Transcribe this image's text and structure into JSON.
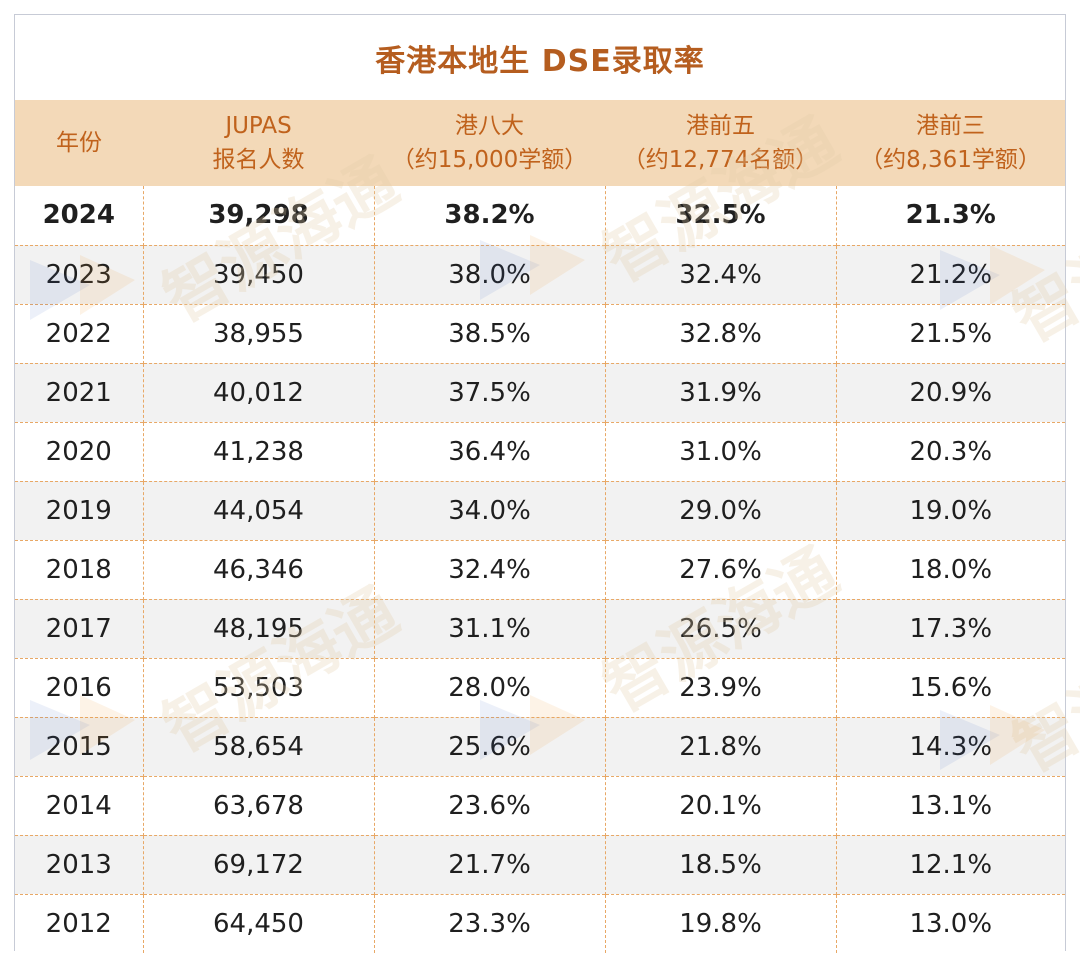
{
  "title": "香港本地生 DSE录取率",
  "headers": {
    "year": "年份",
    "jupas_1": "JUPAS",
    "jupas_2": "报名人数",
    "top8_1": "港八大",
    "top8_2": "（约15,000学额）",
    "top5_1": "港前五",
    "top5_2": "（约12,774名额）",
    "top3_1": "港前三",
    "top3_2": "（约8,361学额）"
  },
  "rows": [
    {
      "year": "2024",
      "jupas": "39,298",
      "top8": "38.2%",
      "top5": "32.5%",
      "top3": "21.3%"
    },
    {
      "year": "2023",
      "jupas": "39,450",
      "top8": "38.0%",
      "top5": "32.4%",
      "top3": "21.2%"
    },
    {
      "year": "2022",
      "jupas": "38,955",
      "top8": "38.5%",
      "top5": "32.8%",
      "top3": "21.5%"
    },
    {
      "year": "2021",
      "jupas": "40,012",
      "top8": "37.5%",
      "top5": "31.9%",
      "top3": "20.9%"
    },
    {
      "year": "2020",
      "jupas": "41,238",
      "top8": "36.4%",
      "top5": "31.0%",
      "top3": "20.3%"
    },
    {
      "year": "2019",
      "jupas": "44,054",
      "top8": "34.0%",
      "top5": "29.0%",
      "top3": "19.0%"
    },
    {
      "year": "2018",
      "jupas": "46,346",
      "top8": "32.4%",
      "top5": "27.6%",
      "top3": "18.0%"
    },
    {
      "year": "2017",
      "jupas": "48,195",
      "top8": "31.1%",
      "top5": "26.5%",
      "top3": "17.3%"
    },
    {
      "year": "2016",
      "jupas": "53,503",
      "top8": "28.0%",
      "top5": "23.9%",
      "top3": "15.6%"
    },
    {
      "year": "2015",
      "jupas": "58,654",
      "top8": "25.6%",
      "top5": "21.8%",
      "top3": "14.3%"
    },
    {
      "year": "2014",
      "jupas": "63,678",
      "top8": "23.6%",
      "top5": "20.1%",
      "top3": "13.1%"
    },
    {
      "year": "2013",
      "jupas": "69,172",
      "top8": "21.7%",
      "top5": "18.5%",
      "top3": "12.1%"
    },
    {
      "year": "2012",
      "jupas": "64,450",
      "top8": "23.3%",
      "top5": "19.8%",
      "top3": "13.0%"
    }
  ],
  "watermark": "智源海通",
  "colors": {
    "title": "#b55d1f",
    "header_bg": "#f3d9b8",
    "header_text": "#c0621c",
    "row_alt_bg": "#f2f2f2",
    "grid_line": "#e8a866"
  }
}
